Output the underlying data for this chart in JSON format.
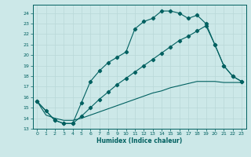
{
  "xlabel": "Humidex (Indice chaleur)",
  "ylabel": "",
  "bg_color": "#cce8e8",
  "grid_color": "#b8d8d8",
  "line_color": "#006060",
  "xlim": [
    -0.5,
    23.5
  ],
  "ylim": [
    13.0,
    24.8
  ],
  "xticks": [
    0,
    1,
    2,
    3,
    4,
    5,
    6,
    7,
    8,
    9,
    10,
    11,
    12,
    13,
    14,
    15,
    16,
    17,
    18,
    19,
    20,
    21,
    22,
    23
  ],
  "yticks": [
    13,
    14,
    15,
    16,
    17,
    18,
    19,
    20,
    21,
    22,
    23,
    24
  ],
  "line1_x": [
    0,
    1,
    2,
    3,
    4,
    5,
    6,
    7,
    8,
    9,
    10,
    11,
    12,
    13,
    14,
    15,
    16,
    17,
    18,
    19,
    20,
    21,
    22,
    23
  ],
  "line1_y": [
    15.6,
    14.7,
    13.8,
    13.5,
    13.5,
    15.5,
    17.5,
    18.5,
    19.3,
    19.8,
    20.3,
    22.5,
    23.2,
    23.5,
    24.2,
    24.2,
    24.0,
    23.5,
    23.8,
    23.0,
    21.0,
    19.0,
    18.0,
    17.5
  ],
  "line2_x": [
    0,
    2,
    3,
    4,
    5,
    6,
    7,
    8,
    9,
    10,
    11,
    12,
    13,
    14,
    15,
    16,
    17,
    18,
    19,
    20,
    21,
    22,
    23
  ],
  "line2_y": [
    15.6,
    13.8,
    13.5,
    13.5,
    14.2,
    15.0,
    15.8,
    16.5,
    17.2,
    17.8,
    18.4,
    19.0,
    19.6,
    20.2,
    20.8,
    21.4,
    21.8,
    22.3,
    22.8,
    21.0,
    19.0,
    18.0,
    17.5
  ],
  "line3_x": [
    0,
    1,
    2,
    3,
    4,
    5,
    6,
    7,
    8,
    9,
    10,
    11,
    12,
    13,
    14,
    15,
    16,
    17,
    18,
    19,
    20,
    21,
    22,
    23
  ],
  "line3_y": [
    15.6,
    14.3,
    14.0,
    13.8,
    13.8,
    14.0,
    14.3,
    14.6,
    14.9,
    15.2,
    15.5,
    15.8,
    16.1,
    16.4,
    16.6,
    16.9,
    17.1,
    17.3,
    17.5,
    17.5,
    17.5,
    17.4,
    17.4,
    17.4
  ]
}
